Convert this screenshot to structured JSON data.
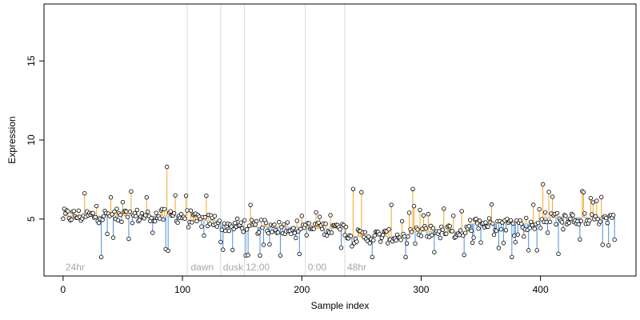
{
  "chart_data": {
    "type": "scatter",
    "title": "",
    "xlabel": "Sample index",
    "ylabel": "Expression",
    "xlim": [
      -16,
      480
    ],
    "ylim": [
      1.4,
      18.6
    ],
    "xticks": [
      0,
      100,
      200,
      300,
      400
    ],
    "yticks": [
      5,
      10,
      15
    ],
    "baseline_segments": [
      {
        "x0": 0,
        "x1": 104,
        "level": 5.2
      },
      {
        "x0": 105,
        "x1": 132,
        "level": 4.9
      },
      {
        "x0": 133,
        "x1": 152,
        "level": 4.6
      },
      {
        "x0": 153,
        "x1": 203,
        "level": 4.5
      },
      {
        "x0": 204,
        "x1": 236,
        "level": 4.4
      },
      {
        "x0": 237,
        "x1": 262,
        "level": 3.9
      },
      {
        "x0": 263,
        "x1": 290,
        "level": 3.9
      },
      {
        "x0": 291,
        "x1": 340,
        "level": 4.2
      },
      {
        "x0": 341,
        "x1": 400,
        "level": 4.7
      },
      {
        "x0": 401,
        "x1": 462,
        "level": 5.1
      }
    ],
    "condition_dividers": [
      104,
      132,
      152,
      203,
      236
    ],
    "condition_labels": [
      {
        "x": 2,
        "text": "24hr"
      },
      {
        "x": 107,
        "text": "dawn"
      },
      {
        "x": 134,
        "text": "dusk"
      },
      {
        "x": 153,
        "text": "12:00"
      },
      {
        "x": 205,
        "text": "0:00"
      },
      {
        "x": 238,
        "text": "48hr"
      }
    ],
    "highlights": [
      {
        "x": 87,
        "y": 8.3
      },
      {
        "x": 94,
        "y": 6.5
      },
      {
        "x": 243,
        "y": 6.9
      },
      {
        "x": 250,
        "y": 6.7
      },
      {
        "x": 275,
        "y": 5.9
      },
      {
        "x": 293,
        "y": 6.9
      },
      {
        "x": 402,
        "y": 7.2
      },
      {
        "x": 86,
        "y": 3.1
      },
      {
        "x": 88,
        "y": 3.0
      },
      {
        "x": 32,
        "y": 2.6
      },
      {
        "x": 153,
        "y": 2.7
      },
      {
        "x": 165,
        "y": 2.7
      },
      {
        "x": 182,
        "y": 2.7
      },
      {
        "x": 259,
        "y": 2.6
      },
      {
        "x": 287,
        "y": 2.6
      },
      {
        "x": 376,
        "y": 2.6
      },
      {
        "x": 415,
        "y": 2.8
      }
    ],
    "n_points": 463,
    "colors": {
      "above_baseline": "#f5a623",
      "below_baseline": "#4a90d9",
      "divider": "#d9d9d9",
      "point_stroke": "#000000",
      "point_fill": "#ffffff"
    }
  }
}
